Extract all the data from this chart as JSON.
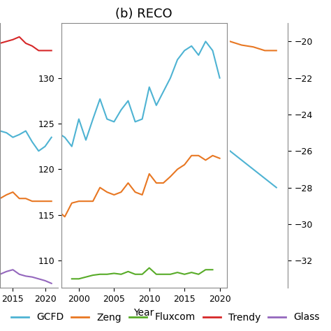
{
  "title": "(b) RECO",
  "xlabel": "Year",
  "background_color": "#ffffff",
  "middle_panel": {
    "xlim": [
      1997.5,
      2021
    ],
    "ylim": [
      107,
      136
    ],
    "yticks": [
      110,
      115,
      120,
      125,
      130
    ],
    "xticks": [
      2000,
      2005,
      2010,
      2015,
      2020
    ],
    "lines": {
      "GCFD": {
        "color": "#4eb3d3",
        "years": [
          1997,
          1998,
          1999,
          2000,
          2001,
          2002,
          2003,
          2004,
          2005,
          2006,
          2007,
          2008,
          2009,
          2010,
          2011,
          2012,
          2013,
          2014,
          2015,
          2016,
          2017,
          2018,
          2019,
          2020
        ],
        "values": [
          124.0,
          123.5,
          122.5,
          125.5,
          123.2,
          125.5,
          127.7,
          125.5,
          125.2,
          126.5,
          127.5,
          125.2,
          125.5,
          129.0,
          127.0,
          128.5,
          130.0,
          132.0,
          133.0,
          133.5,
          132.5,
          134.0,
          133.0,
          130.0
        ]
      },
      "Zeng": {
        "color": "#e87722",
        "years": [
          1997,
          1998,
          1999,
          2000,
          2001,
          2002,
          2003,
          2004,
          2005,
          2006,
          2007,
          2008,
          2009,
          2010,
          2011,
          2012,
          2013,
          2014,
          2015,
          2016,
          2017,
          2018,
          2019,
          2020
        ],
        "values": [
          115.5,
          114.8,
          116.3,
          116.5,
          116.5,
          116.5,
          118.0,
          117.5,
          117.2,
          117.5,
          118.5,
          117.5,
          117.2,
          119.5,
          118.5,
          118.5,
          119.2,
          120.0,
          120.5,
          121.5,
          121.5,
          121.0,
          121.5,
          121.2
        ]
      },
      "Fluxcom": {
        "color": "#57ab27",
        "years": [
          1999,
          2000,
          2001,
          2002,
          2003,
          2004,
          2005,
          2006,
          2007,
          2008,
          2009,
          2010,
          2011,
          2012,
          2013,
          2014,
          2015,
          2016,
          2017,
          2018,
          2019
        ],
        "values": [
          108.0,
          108.0,
          108.2,
          108.4,
          108.5,
          108.5,
          108.6,
          108.5,
          108.8,
          108.5,
          108.5,
          109.2,
          108.5,
          108.5,
          108.5,
          108.7,
          108.5,
          108.7,
          108.5,
          109.0,
          109.0
        ]
      }
    }
  },
  "left_panel": {
    "xlim": [
      2013,
      2022
    ],
    "ylim": [
      107,
      136
    ],
    "lines": {
      "GCFD": {
        "color": "#4eb3d3",
        "years": [
          2013,
          2014,
          2015,
          2016,
          2017,
          2018,
          2019,
          2020,
          2021
        ],
        "values": [
          124.2,
          124.0,
          123.5,
          123.8,
          124.2,
          123.0,
          122.0,
          122.5,
          123.5
        ]
      },
      "Zeng": {
        "color": "#e87722",
        "years": [
          2013,
          2014,
          2015,
          2016,
          2017,
          2018,
          2019,
          2020,
          2021
        ],
        "values": [
          116.8,
          117.2,
          117.5,
          116.8,
          116.8,
          116.5,
          116.5,
          116.5,
          116.5
        ]
      },
      "Trendy": {
        "color": "#d62728",
        "years": [
          2013,
          2014,
          2015,
          2016,
          2017,
          2018,
          2019,
          2020,
          2021
        ],
        "values": [
          133.8,
          134.0,
          134.2,
          134.5,
          133.8,
          133.5,
          133.0,
          133.0,
          133.0
        ]
      },
      "Glass": {
        "color": "#9467bd",
        "years": [
          2013,
          2014,
          2015,
          2016,
          2017,
          2018,
          2019,
          2020,
          2021
        ],
        "values": [
          108.5,
          108.8,
          109.0,
          108.5,
          108.3,
          108.2,
          108.0,
          107.8,
          107.5
        ]
      }
    }
  },
  "right_panel": {
    "xlim": [
      1997,
      2002
    ],
    "ylim": [
      -33.5,
      -19
    ],
    "yticks": [
      -20,
      -22,
      -24,
      -26,
      -28,
      -30,
      -32
    ],
    "lines": {
      "GCFD": {
        "color": "#4eb3d3",
        "years": [
          1997,
          1998,
          1999,
          2000,
          2001
        ],
        "values": [
          -26.0,
          -26.5,
          -27.0,
          -27.5,
          -28.0
        ]
      },
      "Zeng": {
        "color": "#e87722",
        "years": [
          1997,
          1998,
          1999,
          2000,
          2001
        ],
        "values": [
          -20.0,
          -20.2,
          -20.3,
          -20.5,
          -20.5
        ]
      }
    }
  },
  "legend_entries": [
    "GCFD",
    "Zeng",
    "Fluxcom",
    "Trendy",
    "Glass"
  ],
  "legend_colors": [
    "#4eb3d3",
    "#e87722",
    "#57ab27",
    "#d62728",
    "#9467bd"
  ],
  "title_fontsize": 13,
  "tick_fontsize": 9,
  "axis_label_fontsize": 10,
  "legend_fontsize": 10
}
